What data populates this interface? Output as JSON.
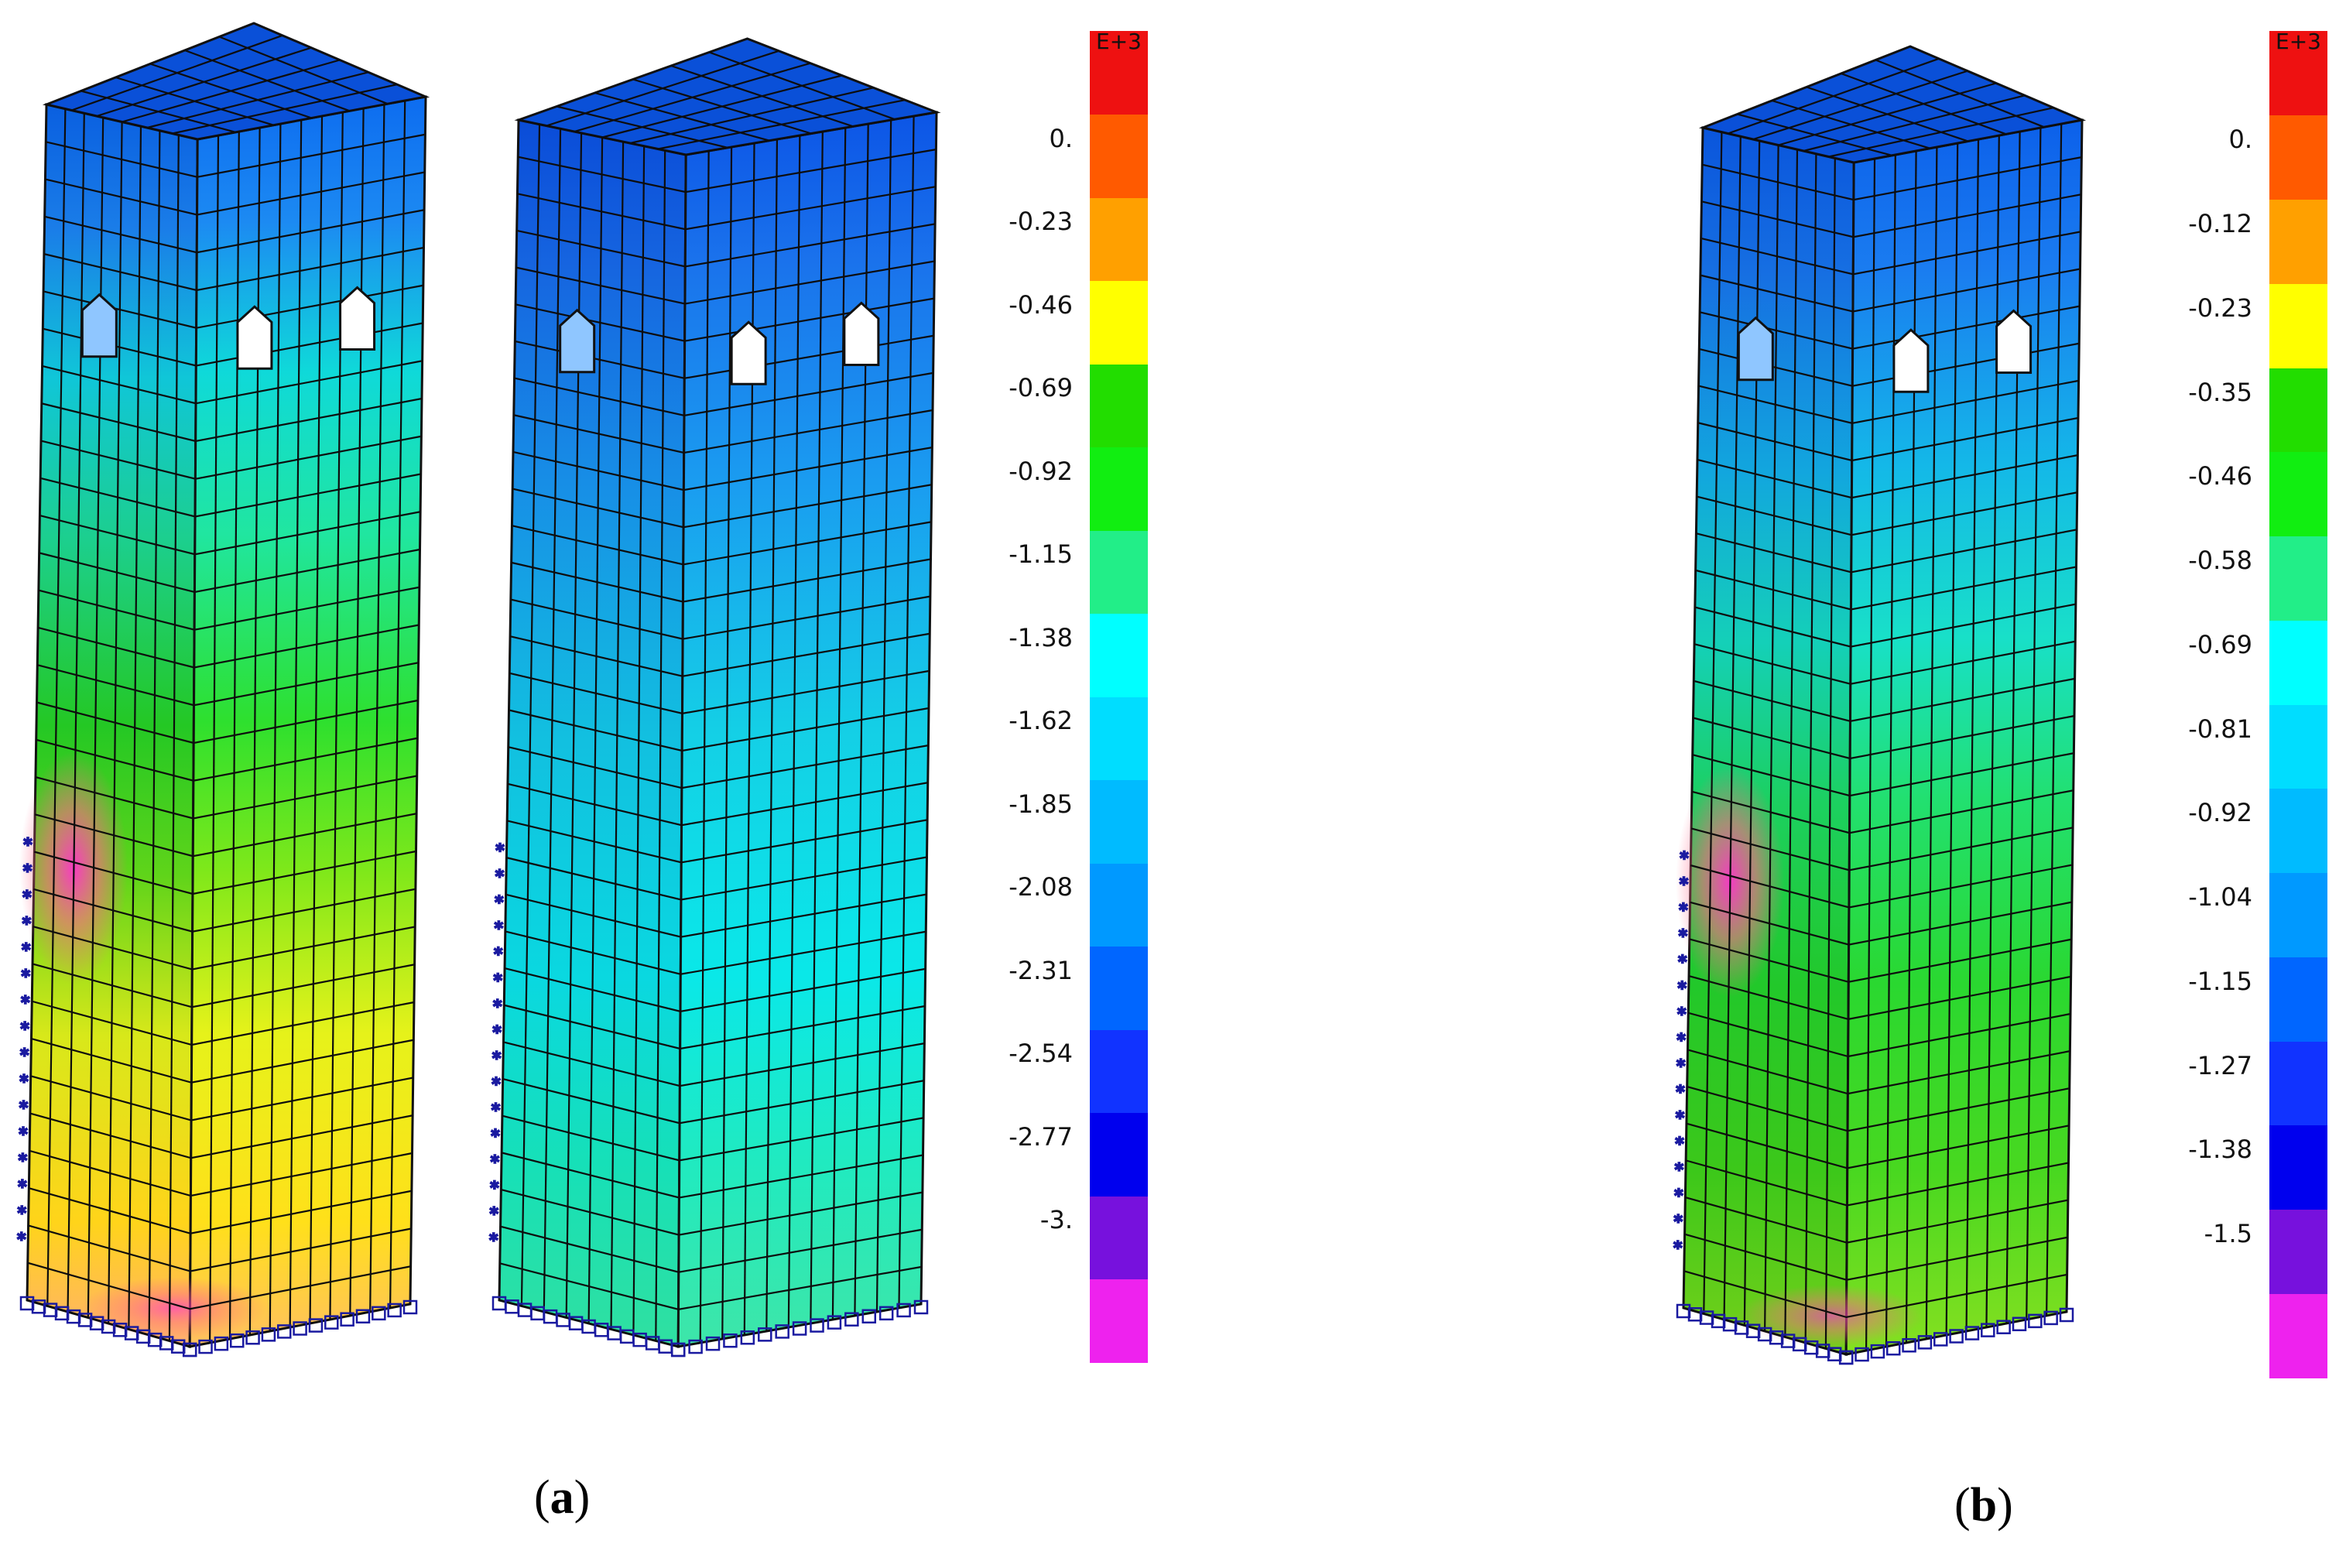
{
  "panel_a": {
    "label_open": "(",
    "label_letter": "a",
    "label_close": ")",
    "tower_left_scheme": "warm",
    "tower_right_scheme": "cool",
    "legend": {
      "exponent": "E+3",
      "values": [
        "0.",
        "-0.23",
        "-0.46",
        "-0.69",
        "-0.92",
        "-1.15",
        "-1.38",
        "-1.62",
        "-1.85",
        "-2.08",
        "-2.31",
        "-2.54",
        "-2.77",
        "-3."
      ]
    }
  },
  "panel_b": {
    "label_open": "(",
    "label_letter": "b",
    "label_close": ")",
    "tower_scheme": "medium",
    "legend": {
      "exponent": "E+3",
      "values": [
        "0.",
        "-0.12",
        "-0.23",
        "-0.35",
        "-0.46",
        "-0.58",
        "-0.69",
        "-0.81",
        "-0.92",
        "-1.04",
        "-1.15",
        "-1.27",
        "-1.38",
        "-1.5"
      ]
    }
  },
  "legend_colors": [
    "#ee1111",
    "#ff5a00",
    "#ffa000",
    "#ffff00",
    "#22dd00",
    "#11ee11",
    "#22ee88",
    "#00ffff",
    "#00ddff",
    "#00bbff",
    "#0099ff",
    "#0066ff",
    "#1133ff",
    "#0000ee",
    "#7711dd",
    "#ee22ee"
  ]
}
